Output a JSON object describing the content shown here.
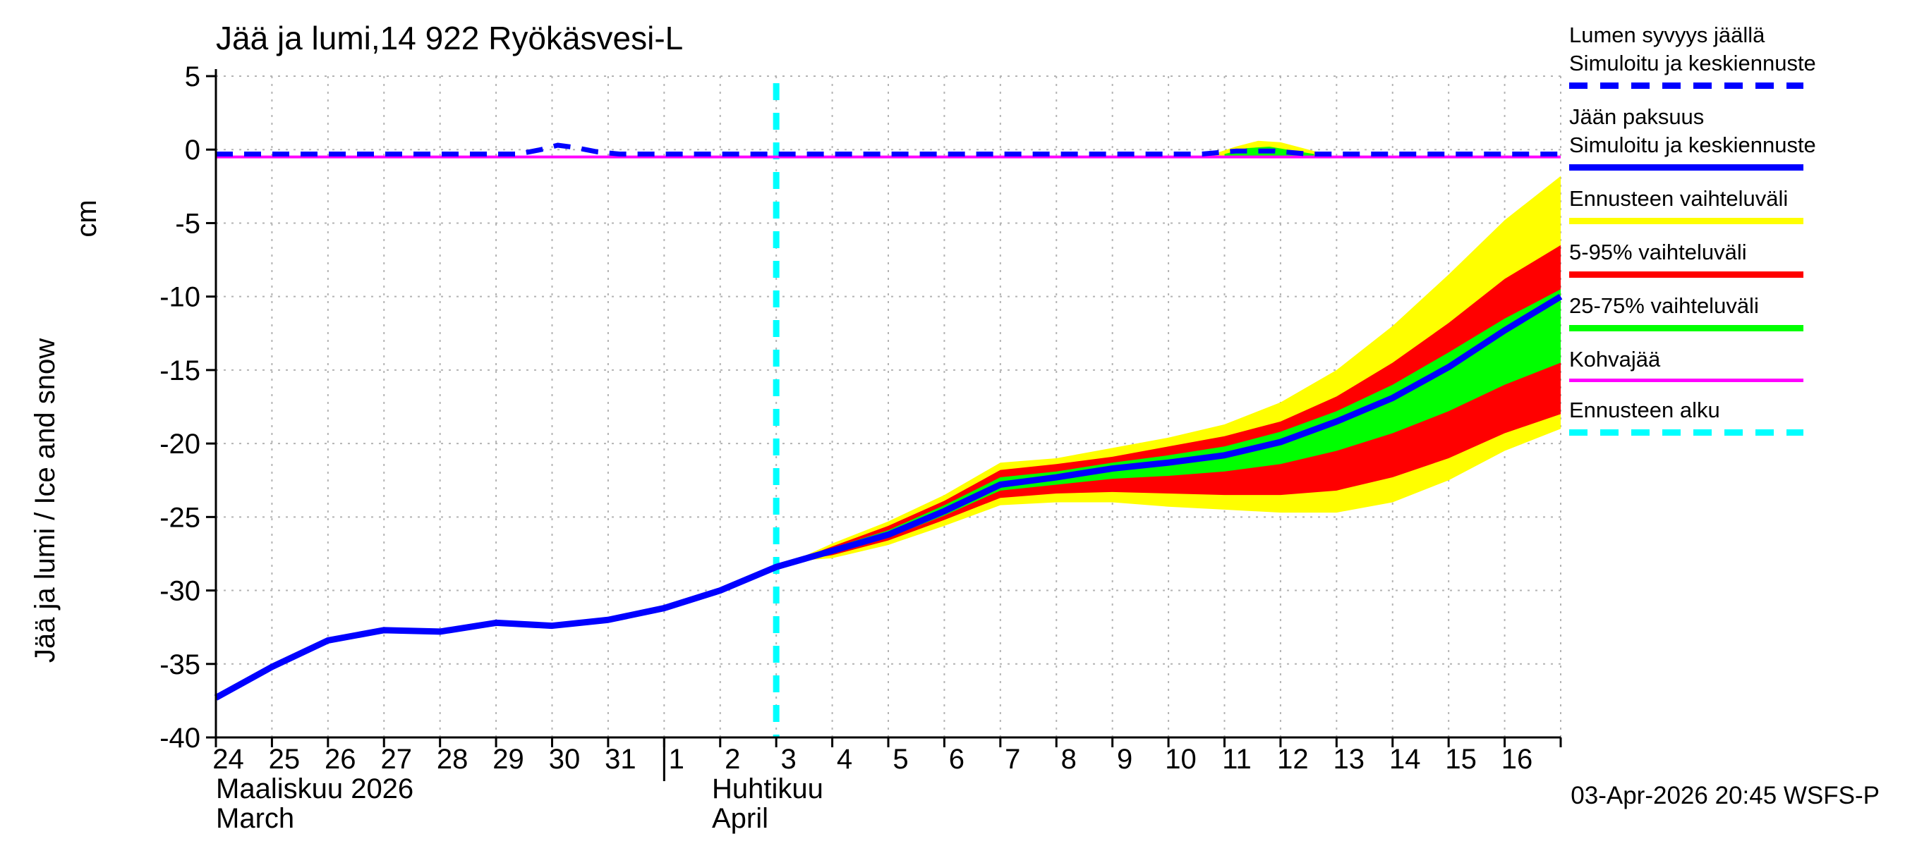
{
  "title": "Jää ja lumi,14 922 Ryökäsvesi-L",
  "y_axis": {
    "label_main": "Jää ja lumi / Ice and snow",
    "label_unit": "cm",
    "tick_labels": [
      "5",
      "0",
      "-5",
      "-10",
      "-15",
      "-20",
      "-25",
      "-30",
      "-35",
      "-40"
    ],
    "tick_values": [
      5,
      0,
      -5,
      -10,
      -15,
      -20,
      -25,
      -30,
      -35,
      -40
    ]
  },
  "x_axis": {
    "day_labels": [
      "24",
      "25",
      "26",
      "27",
      "28",
      "29",
      "30",
      "31",
      "1",
      "2",
      "3",
      "4",
      "5",
      "6",
      "7",
      "8",
      "9",
      "10",
      "11",
      "12",
      "13",
      "14",
      "15",
      "16"
    ],
    "month_boundary_day_index": 8,
    "month_left_line1": "Maaliskuu 2026",
    "month_left_line2": "March",
    "month_right_line1": "Huhtikuu",
    "month_right_line2": "April"
  },
  "footer": {
    "timestamp": "03-Apr-2026 20:45 WSFS-P"
  },
  "colors": {
    "simulated_mean": "#0000ff",
    "forecast_range": "#ffff00",
    "range_5_95": "#ff0000",
    "range_25_75": "#00ff00",
    "kohvajaa": "#ff00ff",
    "forecast_start": "#00ffff",
    "grid": "#b3b3b3",
    "axis": "#000000"
  },
  "legend": {
    "items": [
      {
        "lines": [
          "Lumen syvyys jäällä",
          "Simuloitu ja keskiennuste"
        ],
        "color": "#0000ff",
        "pattern": "dashed",
        "thickness": 9
      },
      {
        "lines": [
          "Jään paksuus",
          "Simuloitu ja keskiennuste"
        ],
        "color": "#0000ff",
        "pattern": "solid",
        "thickness": 9
      },
      {
        "lines": [
          "Ennusteen vaihteluväli"
        ],
        "color": "#ffff00",
        "pattern": "solid",
        "thickness": 9
      },
      {
        "lines": [
          "5-95% vaihteluväli"
        ],
        "color": "#ff0000",
        "pattern": "solid",
        "thickness": 9
      },
      {
        "lines": [
          "25-75% vaihteluväli"
        ],
        "color": "#00ff00",
        "pattern": "solid",
        "thickness": 9
      },
      {
        "lines": [
          "Kohvajää"
        ],
        "color": "#ff00ff",
        "pattern": "solid",
        "thickness": 5
      },
      {
        "lines": [
          "Ennusteen alku"
        ],
        "color": "#00ffff",
        "pattern": "dashed",
        "thickness": 9
      }
    ]
  },
  "chart_data": {
    "type": "line",
    "title": "Jää ja lumi,14 922 Ryökäsvesi-L",
    "ylabel": "Jää ja lumi / Ice and snow (cm)",
    "xlim": [
      0,
      24
    ],
    "ylim": [
      -40,
      5
    ],
    "x_unit_note": "day index, 0 = 24-Mar-2026, 24 = end of 16-Apr-2026",
    "forecast_start_x": 10.0,
    "series": [
      {
        "name": "Jään paksuus - Simuloitu ja keskiennuste",
        "color": "#0000ff",
        "style": "solid",
        "width": 9,
        "points": [
          [
            0,
            -37.3
          ],
          [
            1,
            -35.2
          ],
          [
            2,
            -33.4
          ],
          [
            3,
            -32.7
          ],
          [
            4,
            -32.8
          ],
          [
            5,
            -32.2
          ],
          [
            6,
            -32.4
          ],
          [
            7,
            -32.0
          ],
          [
            8,
            -31.2
          ],
          [
            9,
            -30.0
          ],
          [
            10,
            -28.4
          ],
          [
            11,
            -27.3
          ],
          [
            12,
            -26.2
          ],
          [
            13,
            -24.6
          ],
          [
            14,
            -22.8
          ],
          [
            15,
            -22.3
          ],
          [
            16,
            -21.7
          ],
          [
            17,
            -21.3
          ],
          [
            18,
            -20.8
          ],
          [
            19,
            -19.9
          ],
          [
            20,
            -18.5
          ],
          [
            21,
            -16.9
          ],
          [
            22,
            -14.8
          ],
          [
            23,
            -12.3
          ],
          [
            24,
            -10.0
          ]
        ]
      },
      {
        "name": "Lumen syvyys jäällä - Simuloitu ja keskiennuste",
        "color": "#0000ff",
        "style": "dashed",
        "width": 7,
        "points": [
          [
            0,
            -0.3
          ],
          [
            5.4,
            -0.3
          ],
          [
            5.8,
            0.0
          ],
          [
            6.1,
            0.3
          ],
          [
            6.4,
            0.15
          ],
          [
            6.8,
            -0.15
          ],
          [
            7.2,
            -0.3
          ],
          [
            17.6,
            -0.3
          ],
          [
            18.2,
            -0.1
          ],
          [
            18.9,
            -0.1
          ],
          [
            19.5,
            -0.3
          ],
          [
            24,
            -0.3
          ]
        ]
      },
      {
        "name": "Kohvajää",
        "color": "#ff00ff",
        "style": "solid",
        "width": 4,
        "points": [
          [
            0,
            -0.5
          ],
          [
            24,
            -0.5
          ]
        ]
      }
    ],
    "bands": [
      {
        "name": "Ennusteen vaihteluväli",
        "color": "#ffff00",
        "x": [
          10.3,
          11,
          12,
          13,
          14,
          15,
          16,
          17,
          18,
          19,
          20,
          21,
          22,
          23,
          24
        ],
        "hi": [
          -28.0,
          -26.8,
          -25.3,
          -23.5,
          -21.3,
          -21.0,
          -20.3,
          -19.6,
          -18.7,
          -17.2,
          -15.0,
          -12.0,
          -8.5,
          -4.8,
          -1.8
        ],
        "lo": [
          -28.0,
          -27.8,
          -26.9,
          -25.6,
          -24.2,
          -24.0,
          -24.0,
          -24.3,
          -24.5,
          -24.7,
          -24.7,
          -24.0,
          -22.5,
          -20.5,
          -19.0
        ]
      },
      {
        "name": "5-95% vaihteluväli",
        "color": "#ff0000",
        "x": [
          10.3,
          11,
          12,
          13,
          14,
          15,
          16,
          17,
          18,
          19,
          20,
          21,
          22,
          23,
          24
        ],
        "hi": [
          -28.0,
          -27.0,
          -25.6,
          -23.9,
          -21.8,
          -21.4,
          -20.9,
          -20.2,
          -19.5,
          -18.5,
          -16.8,
          -14.5,
          -11.8,
          -8.8,
          -6.5
        ],
        "lo": [
          -28.0,
          -27.6,
          -26.6,
          -25.2,
          -23.7,
          -23.4,
          -23.3,
          -23.4,
          -23.5,
          -23.5,
          -23.2,
          -22.3,
          -21.0,
          -19.3,
          -18.0
        ]
      },
      {
        "name": "25-75% vaihteluväli",
        "color": "#00ff00",
        "x": [
          10.3,
          11,
          12,
          13,
          14,
          15,
          16,
          17,
          18,
          19,
          20,
          21,
          22,
          23,
          24
        ],
        "hi": [
          -28.0,
          -27.1,
          -25.9,
          -24.2,
          -22.3,
          -21.9,
          -21.3,
          -20.8,
          -20.2,
          -19.2,
          -17.8,
          -16.0,
          -13.8,
          -11.5,
          -9.5
        ],
        "lo": [
          -28.0,
          -27.4,
          -26.4,
          -24.9,
          -23.2,
          -22.8,
          -22.4,
          -22.2,
          -21.9,
          -21.4,
          -20.5,
          -19.3,
          -17.8,
          -16.0,
          -14.5
        ]
      },
      {
        "name": "Lumen syvyys vaihteluväli",
        "color": "#ffff00",
        "x": [
          17.8,
          18.2,
          18.6,
          19.0,
          19.4,
          19.8
        ],
        "hi": [
          -0.3,
          0.2,
          0.6,
          0.5,
          0.1,
          -0.3
        ],
        "lo": [
          -0.5,
          -0.5,
          -0.5,
          -0.5,
          -0.5,
          -0.5
        ]
      },
      {
        "name": "Lumen syvyys 25-75%",
        "color": "#00ff00",
        "x": [
          18.0,
          18.4,
          18.8,
          19.2,
          19.6
        ],
        "hi": [
          -0.3,
          0.1,
          0.2,
          -0.05,
          -0.3
        ],
        "lo": [
          -0.45,
          -0.45,
          -0.45,
          -0.45,
          -0.45
        ]
      }
    ]
  }
}
